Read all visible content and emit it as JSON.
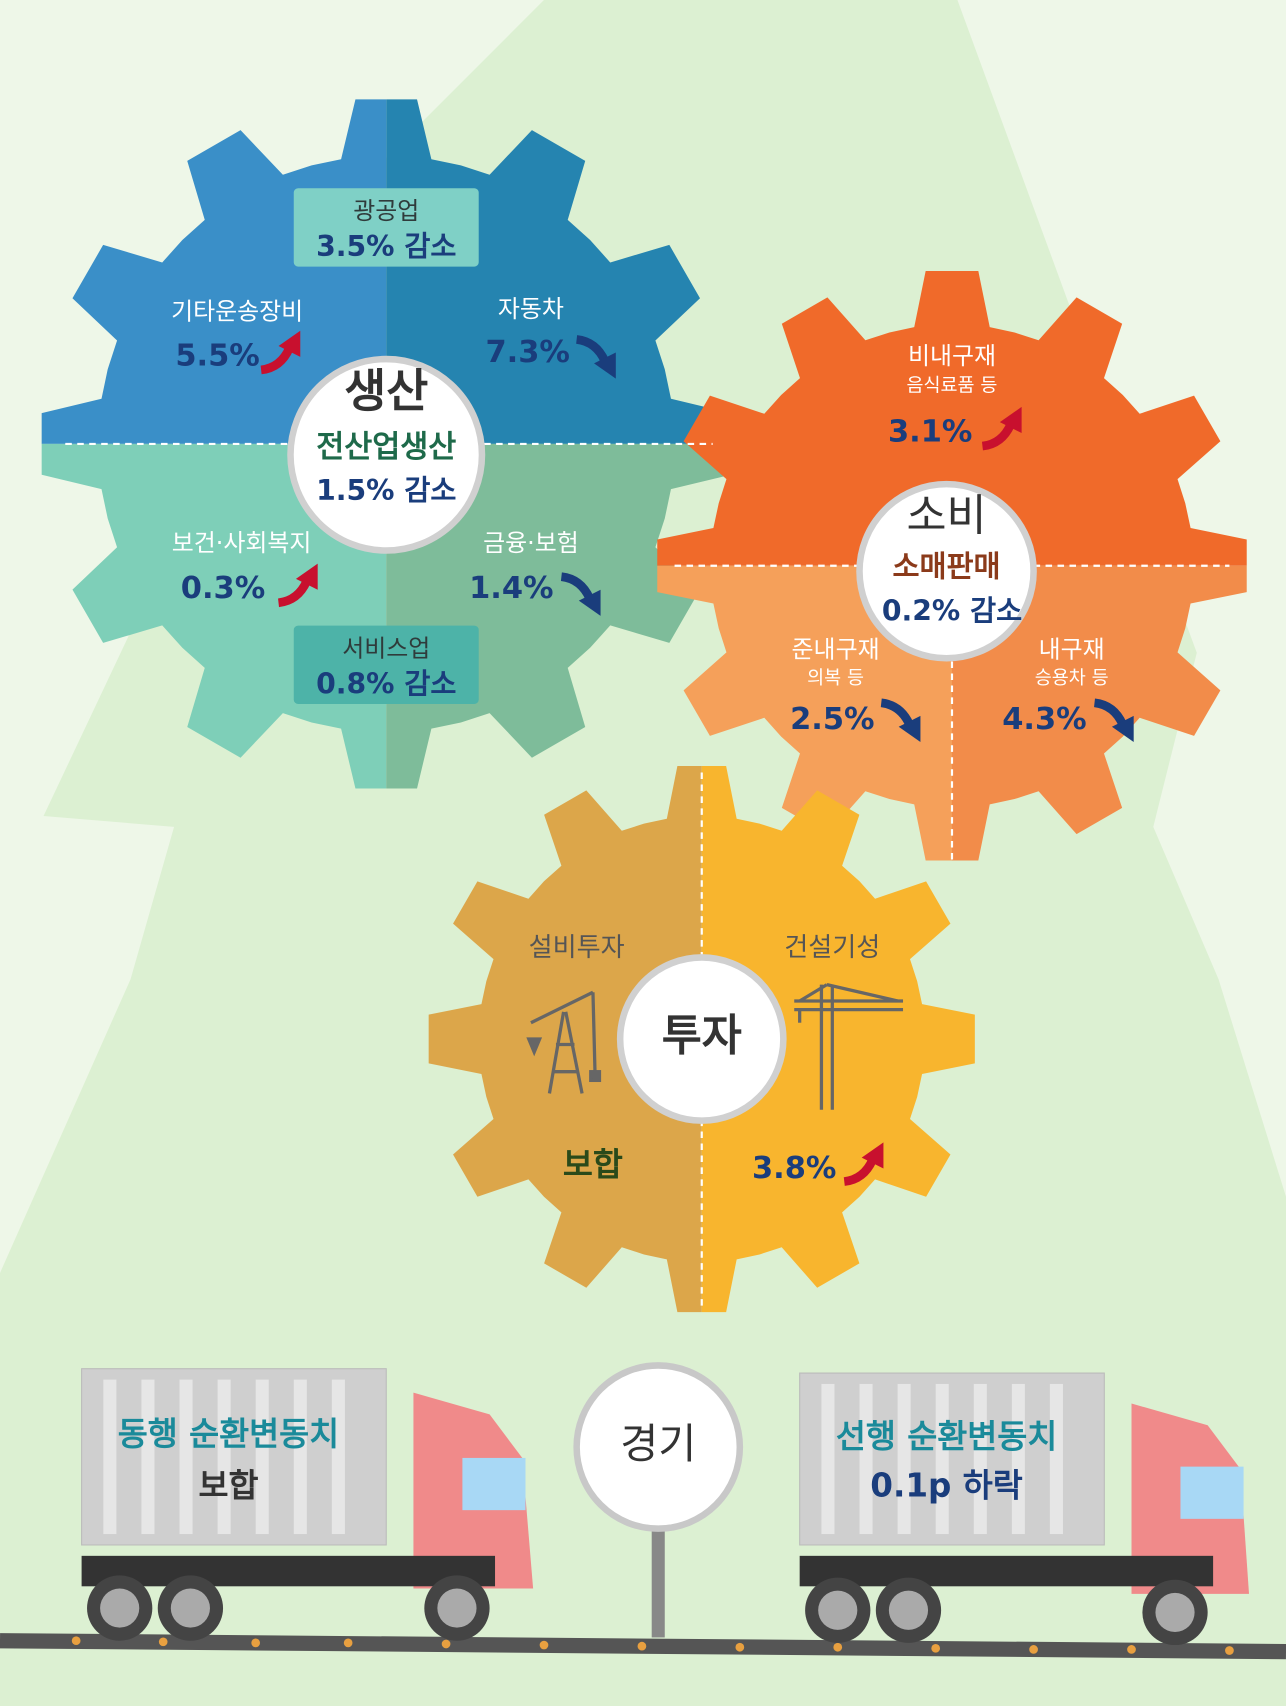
{
  "production": {
    "title": "생산",
    "subtitle": "전산업생산",
    "summary": "1.5% 감소",
    "mining": {
      "label": "광공업",
      "value": "3.5% 감소"
    },
    "service": {
      "label": "서비스업",
      "value": "0.8% 감소"
    },
    "items": [
      {
        "label": "기타운송장비",
        "value": "5.5%",
        "direction": "up"
      },
      {
        "label": "자동차",
        "value": "7.3%",
        "direction": "down"
      },
      {
        "label": "보건·사회복지",
        "value": "0.3%",
        "direction": "up"
      },
      {
        "label": "금융·보험",
        "value": "1.4%",
        "direction": "down"
      }
    ]
  },
  "consumption": {
    "title": "소비",
    "subtitle": "소매판매",
    "summary": "0.2% 감소",
    "items": [
      {
        "label": "비내구재",
        "note": "음식료품 등",
        "value": "3.1%",
        "direction": "up"
      },
      {
        "label": "준내구재",
        "note": "의복 등",
        "value": "2.5%",
        "direction": "down"
      },
      {
        "label": "내구재",
        "note": "승용차 등",
        "value": "4.3%",
        "direction": "down"
      }
    ]
  },
  "investment": {
    "title": "투자",
    "items": [
      {
        "label": "설비투자",
        "value": "보합"
      },
      {
        "label": "건설기성",
        "value": "3.8%",
        "direction": "up"
      }
    ]
  },
  "economy": {
    "title": "경기",
    "coincident": {
      "label": "동행 순환변동치",
      "value": "보합"
    },
    "leading": {
      "label": "선행 순환변동치",
      "value": "0.1p 하락"
    }
  }
}
